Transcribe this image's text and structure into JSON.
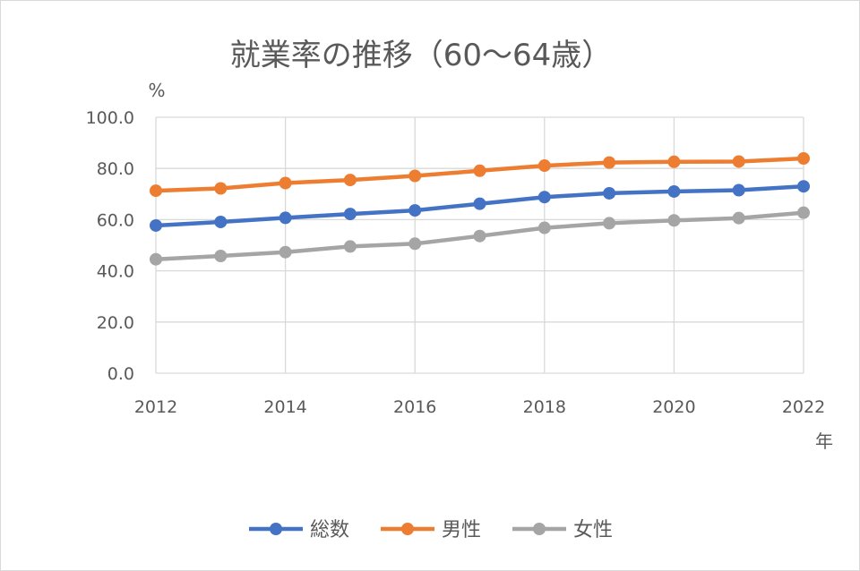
{
  "chart_data": {
    "type": "line",
    "title": "就業率の推移（60～64歳）",
    "ylabel": "%",
    "xlabel": "年",
    "ylim": [
      0,
      100
    ],
    "yticks": [
      "0.0",
      "20.0",
      "40.0",
      "60.0",
      "80.0",
      "100.0"
    ],
    "xlim": [
      2012,
      2022
    ],
    "xticks": [
      "2012",
      "2014",
      "2016",
      "2018",
      "2020",
      "2022"
    ],
    "x": [
      2012,
      2013,
      2014,
      2015,
      2016,
      2017,
      2018,
      2019,
      2020,
      2021,
      2022
    ],
    "grid": true,
    "legend_position": "bottom",
    "series": [
      {
        "name": "総数",
        "color": "#4472c4",
        "values": [
          57.7,
          59.1,
          60.7,
          62.2,
          63.6,
          66.2,
          68.8,
          70.3,
          71.0,
          71.5,
          73.0
        ]
      },
      {
        "name": "男性",
        "color": "#ed7d31",
        "values": [
          71.3,
          72.2,
          74.3,
          75.5,
          77.1,
          79.1,
          81.1,
          82.3,
          82.6,
          82.7,
          83.9
        ]
      },
      {
        "name": "女性",
        "color": "#a5a5a5",
        "values": [
          44.5,
          45.8,
          47.3,
          49.5,
          50.6,
          53.6,
          56.8,
          58.6,
          59.7,
          60.6,
          62.7
        ]
      }
    ]
  }
}
